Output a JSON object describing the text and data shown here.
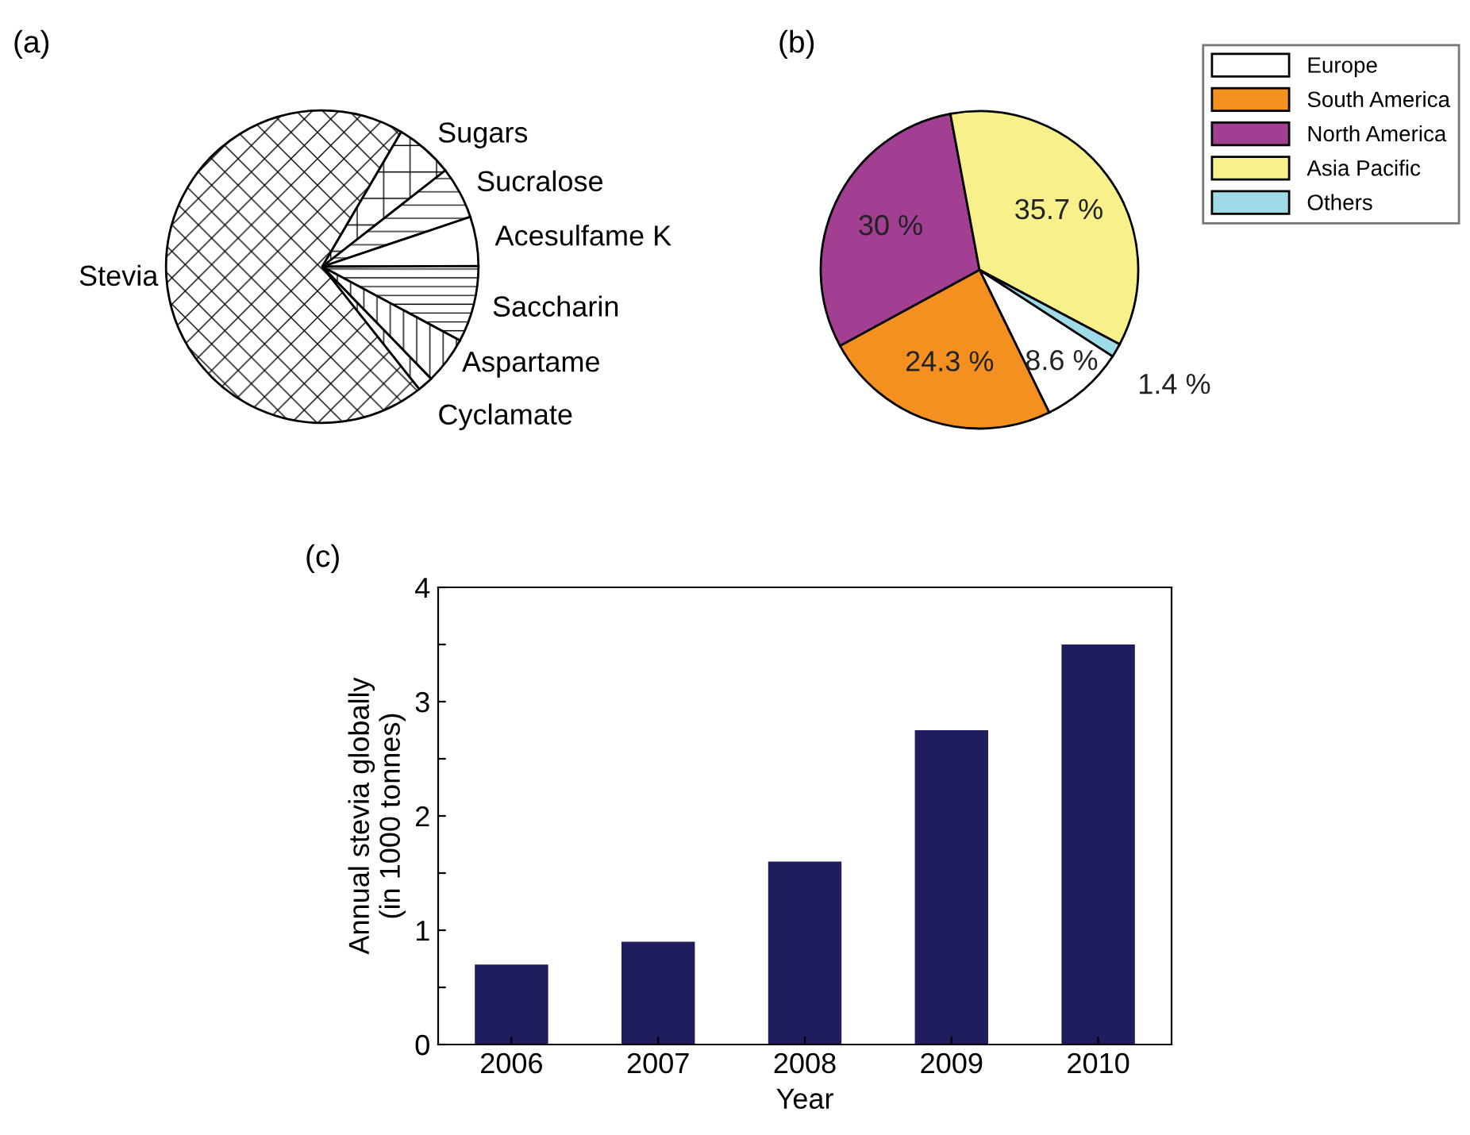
{
  "chart_data": [
    {
      "type": "pie",
      "title": "(a)",
      "categories": [
        "Stevia",
        "Sugars",
        "Sucralose",
        "Acesulfame K",
        "Saccharin",
        "Aspartame",
        "Cyclamate"
      ],
      "values": [
        69.1,
        6.0,
        5.4,
        5.1,
        7.9,
        4.9,
        1.6
      ],
      "colors": [
        "#ffffff",
        "#ffffff",
        "#ffffff",
        "#ffffff",
        "#ffffff",
        "#ffffff",
        "#ffffff"
      ]
    },
    {
      "type": "pie",
      "title": "(b)",
      "categories": [
        "Europe",
        "South America",
        "North America",
        "Asia Pacific",
        "Others"
      ],
      "values": [
        8.6,
        24.3,
        30,
        35.7,
        1.4
      ],
      "colors": [
        "#ffffff",
        "#f39020",
        "#a23f93",
        "#f8f08a",
        "#9edbe6"
      ],
      "value_labels": [
        "8.6 %",
        "24.3 %",
        "30 %",
        "35.7 %",
        "1.4 %"
      ],
      "legend": "top right"
    },
    {
      "type": "bar",
      "title": "(c)",
      "xlabel": "Year",
      "ylabel": "Annual stevia globally\n(in 1000 tonnes)",
      "categories": [
        "2006",
        "2007",
        "2008",
        "2009",
        "2010"
      ],
      "values": [
        0.7,
        0.9,
        1.6,
        2.75,
        3.5
      ],
      "color": "#201d5c",
      "ylim": [
        0,
        4
      ],
      "yticks": [
        0,
        {
          "value": 0.5,
          "label": null
        },
        1,
        {
          "value": 1.5,
          "label": null
        },
        2,
        {
          "value": 2.5,
          "label": null
        },
        3,
        {
          "value": 3.5,
          "label": null
        },
        4
      ],
      "grid": false
    }
  ]
}
